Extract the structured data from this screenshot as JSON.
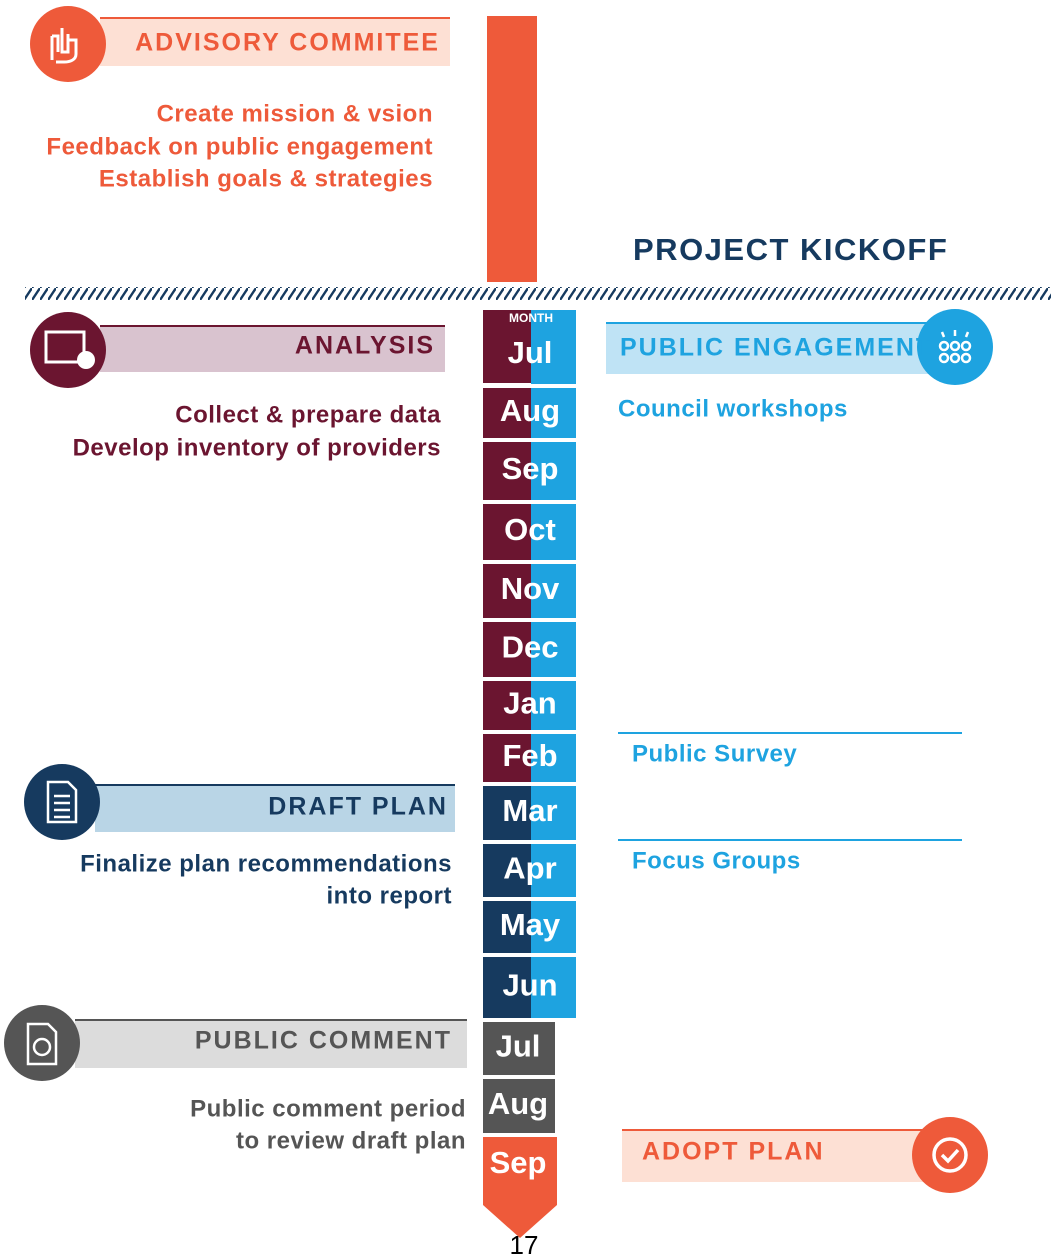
{
  "advisory": {
    "title": "ADVISORY COMMITEE",
    "items": [
      "Create mission & vsion",
      "Feedback on public engagement",
      "Establish goals & strategies"
    ]
  },
  "kickoff": "PROJECT KICKOFF",
  "analysis": {
    "title": "ANALYSIS",
    "items": [
      "Collect & prepare data",
      "Develop inventory of providers"
    ]
  },
  "public_engagement": {
    "title": "PUBLIC ENGAGEMENT",
    "items": [
      "Council workshops",
      "Public Survey",
      "Focus Groups"
    ]
  },
  "draft_plan": {
    "title": "DRAFT PLAN",
    "items": [
      "Finalize plan recommendations",
      "into report"
    ]
  },
  "public_comment": {
    "title": "PUBLIC COMMENT",
    "items": [
      "Public comment period",
      "to review draft plan"
    ]
  },
  "adopt_plan": {
    "title": "ADOPT PLAN"
  },
  "timeline": {
    "header": "MONTH",
    "months": [
      "Jul",
      "Aug",
      "Sep",
      "Oct",
      "Nov",
      "Dec",
      "Jan",
      "Feb",
      "Mar",
      "Apr",
      "May",
      "Jun",
      "Jul",
      "Aug",
      "Sep"
    ]
  },
  "page_number": "17"
}
